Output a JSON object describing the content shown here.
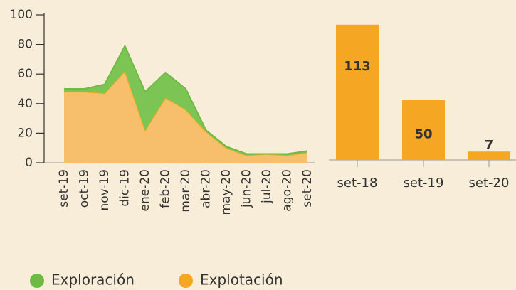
{
  "chart_data": [
    {
      "type": "area",
      "categories": [
        "set-19",
        "oct-19",
        "nov-19",
        "dic-19",
        "ene-20",
        "feb-20",
        "mar-20",
        "abr-20",
        "may-20",
        "jun-20",
        "jul-20",
        "ago-20",
        "set-20"
      ],
      "series": [
        {
          "name": "Exploración",
          "color": "#6dbb45",
          "values": [
            2,
            2,
            6,
            17,
            26,
            17,
            14,
            1,
            1,
            1,
            0,
            1,
            1
          ]
        },
        {
          "name": "Explotación",
          "color": "#f5a623",
          "values": [
            48,
            48,
            47,
            62,
            22,
            44,
            36,
            21,
            10,
            5,
            6,
            5,
            7
          ]
        }
      ],
      "stacked": true,
      "ylim": [
        0,
        100
      ],
      "yticks": [
        0,
        20,
        40,
        60,
        80,
        100
      ]
    },
    {
      "type": "bar",
      "categories": [
        "set-18",
        "set-19",
        "set-20"
      ],
      "values": [
        113,
        50,
        7
      ],
      "color": "#f5a623",
      "ylim": [
        0,
        120
      ]
    }
  ]
}
